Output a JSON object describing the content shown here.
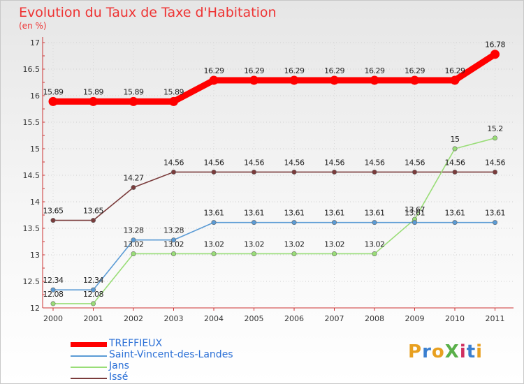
{
  "title": "Evolution du Taux de Taxe d'Habitation",
  "subtitle": "(en %)",
  "logo": "ProXiti",
  "chart_data": {
    "type": "line",
    "title": "Evolution du Taux de Taxe d'Habitation",
    "subtitle": "(en %)",
    "xlabel": "",
    "ylabel": "",
    "x": [
      "2000",
      "2001",
      "2002",
      "2003",
      "2004",
      "2005",
      "2006",
      "2007",
      "2008",
      "2009",
      "2010",
      "2011"
    ],
    "ylim": [
      12,
      17
    ],
    "yticks": [
      "12",
      "12.5",
      "13",
      "13.5",
      "14",
      "14.5",
      "15",
      "15.5",
      "16",
      "16.5",
      "17"
    ],
    "legend_position": "bottom-left",
    "series": [
      {
        "name": "TREFFIEUX",
        "color": "#ff0000",
        "values": [
          15.89,
          15.89,
          15.89,
          15.89,
          16.29,
          16.29,
          16.29,
          16.29,
          16.29,
          16.29,
          16.29,
          16.78
        ],
        "labels": [
          "15.89",
          "15.89",
          "15.89",
          "15.89",
          "16.29",
          "16.29",
          "16.29",
          "16.29",
          "16.29",
          "16.29",
          "16.29",
          "16.78"
        ]
      },
      {
        "name": "Saint-Vincent-des-Landes",
        "color": "#5b9bd5",
        "values": [
          12.34,
          12.34,
          13.28,
          13.28,
          13.61,
          13.61,
          13.61,
          13.61,
          13.61,
          13.61,
          13.61,
          13.61
        ],
        "labels": [
          "12.34",
          "12.34",
          "13.28",
          "13.28",
          "13.61",
          "13.61",
          "13.61",
          "13.61",
          "13.61",
          "13.61",
          "13.61",
          "13.61"
        ]
      },
      {
        "name": "Jans",
        "color": "#99dd77",
        "values": [
          12.08,
          12.08,
          13.02,
          13.02,
          13.02,
          13.02,
          13.02,
          13.02,
          13.02,
          13.67,
          15,
          15.2
        ],
        "labels": [
          "12.08",
          "12.08",
          "13.02",
          "13.02",
          "13.02",
          "13.02",
          "13.02",
          "13.02",
          "13.02",
          "13.67",
          "15",
          "15.2"
        ]
      },
      {
        "name": "Issé",
        "color": "#7a3b3b",
        "values": [
          13.65,
          13.65,
          14.27,
          14.56,
          14.56,
          14.56,
          14.56,
          14.56,
          14.56,
          14.56,
          14.56,
          14.56
        ],
        "labels": [
          "13.65",
          "13.65",
          "14.27",
          "14.56",
          "14.56",
          "14.56",
          "14.56",
          "14.56",
          "14.56",
          "14.56",
          "14.56",
          "14.56"
        ]
      }
    ]
  }
}
